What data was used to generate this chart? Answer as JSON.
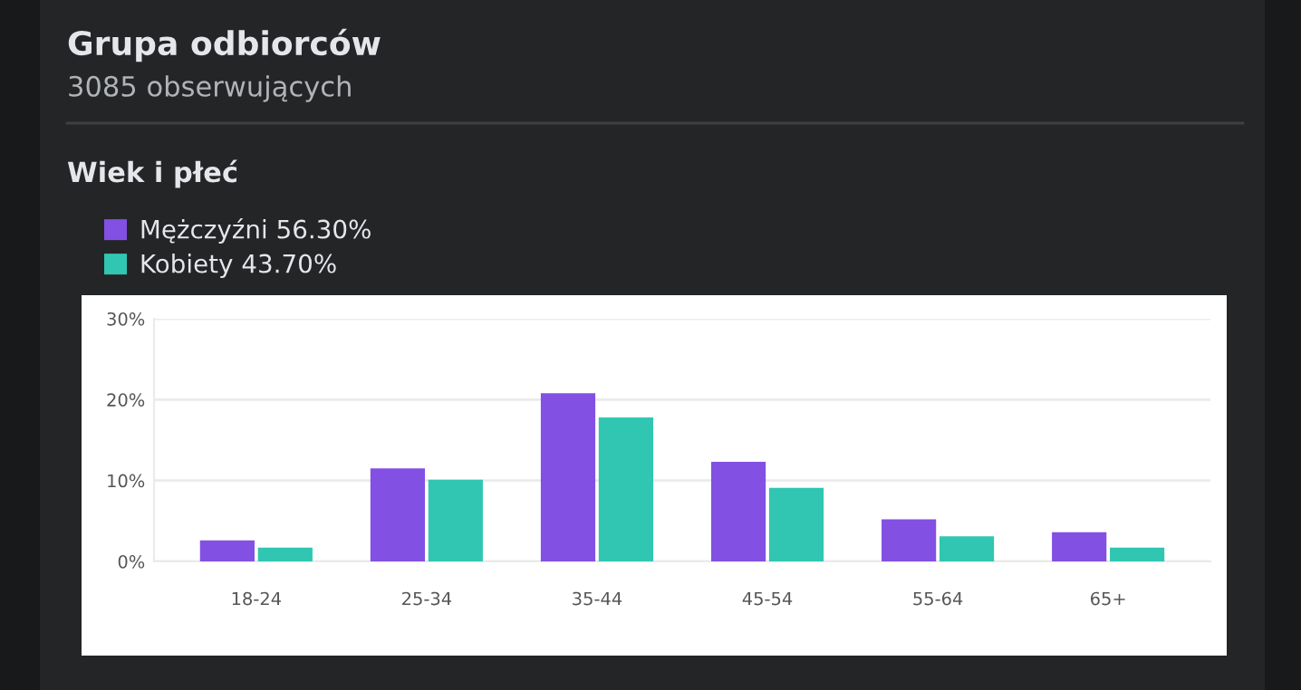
{
  "chart_data": {
    "type": "bar",
    "title": "Grupa odbiorców",
    "subtitle": "3085 obserwujących",
    "legend_title": "Wiek i płeć",
    "categories": [
      "18-24",
      "25-34",
      "35-44",
      "45-54",
      "55-64",
      "65+"
    ],
    "series": [
      {
        "name": "Mężczyźni 56.30%",
        "color": "#8250e3",
        "values": [
          2.6,
          11.5,
          20.8,
          12.3,
          5.2,
          3.6
        ]
      },
      {
        "name": "Kobiety 43.70%",
        "color": "#31c6b2",
        "values": [
          1.7,
          10.1,
          17.8,
          9.1,
          3.1,
          1.7
        ]
      }
    ],
    "ylim": [
      0,
      30
    ],
    "yticks": [
      {
        "value": 0,
        "label": "0%"
      },
      {
        "value": 10,
        "label": "10%"
      },
      {
        "value": 20,
        "label": "20%"
      },
      {
        "value": 30,
        "label": "30%"
      }
    ],
    "grid": "y",
    "legend": "top left"
  }
}
